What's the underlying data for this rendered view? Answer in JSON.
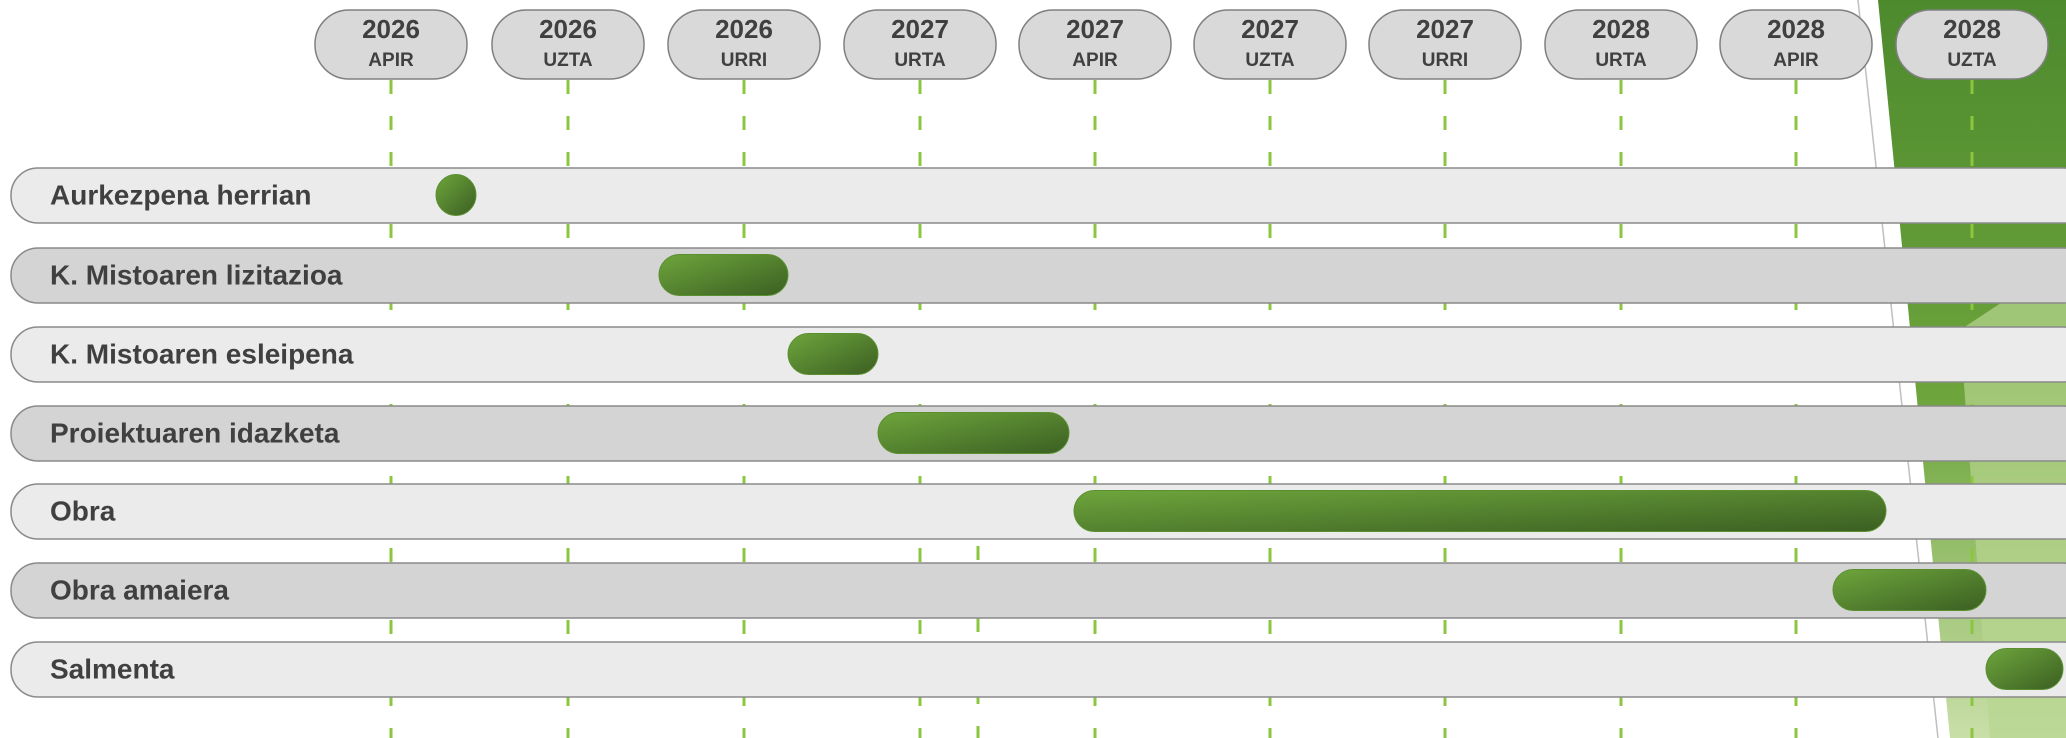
{
  "timeline": {
    "columns": [
      {
        "year": "2026",
        "month": "APIR"
      },
      {
        "year": "2026",
        "month": "UZTA"
      },
      {
        "year": "2026",
        "month": "URRI"
      },
      {
        "year": "2027",
        "month": "URTA"
      },
      {
        "year": "2027",
        "month": "APIR"
      },
      {
        "year": "2027",
        "month": "UZTA"
      },
      {
        "year": "2027",
        "month": "URRI"
      },
      {
        "year": "2028",
        "month": "URTA"
      },
      {
        "year": "2028",
        "month": "APIR"
      },
      {
        "year": "2028",
        "month": "UZTA"
      }
    ]
  },
  "tasks": [
    {
      "label": "Aurkezpena herrian"
    },
    {
      "label": "K. Mistoaren lizitazioa"
    },
    {
      "label": "K. Mistoaren esleipena"
    },
    {
      "label": "Proiektuaren idazketa"
    },
    {
      "label": "Obra"
    },
    {
      "label": "Obra amaiera"
    },
    {
      "label": "Salmenta"
    }
  ]
}
